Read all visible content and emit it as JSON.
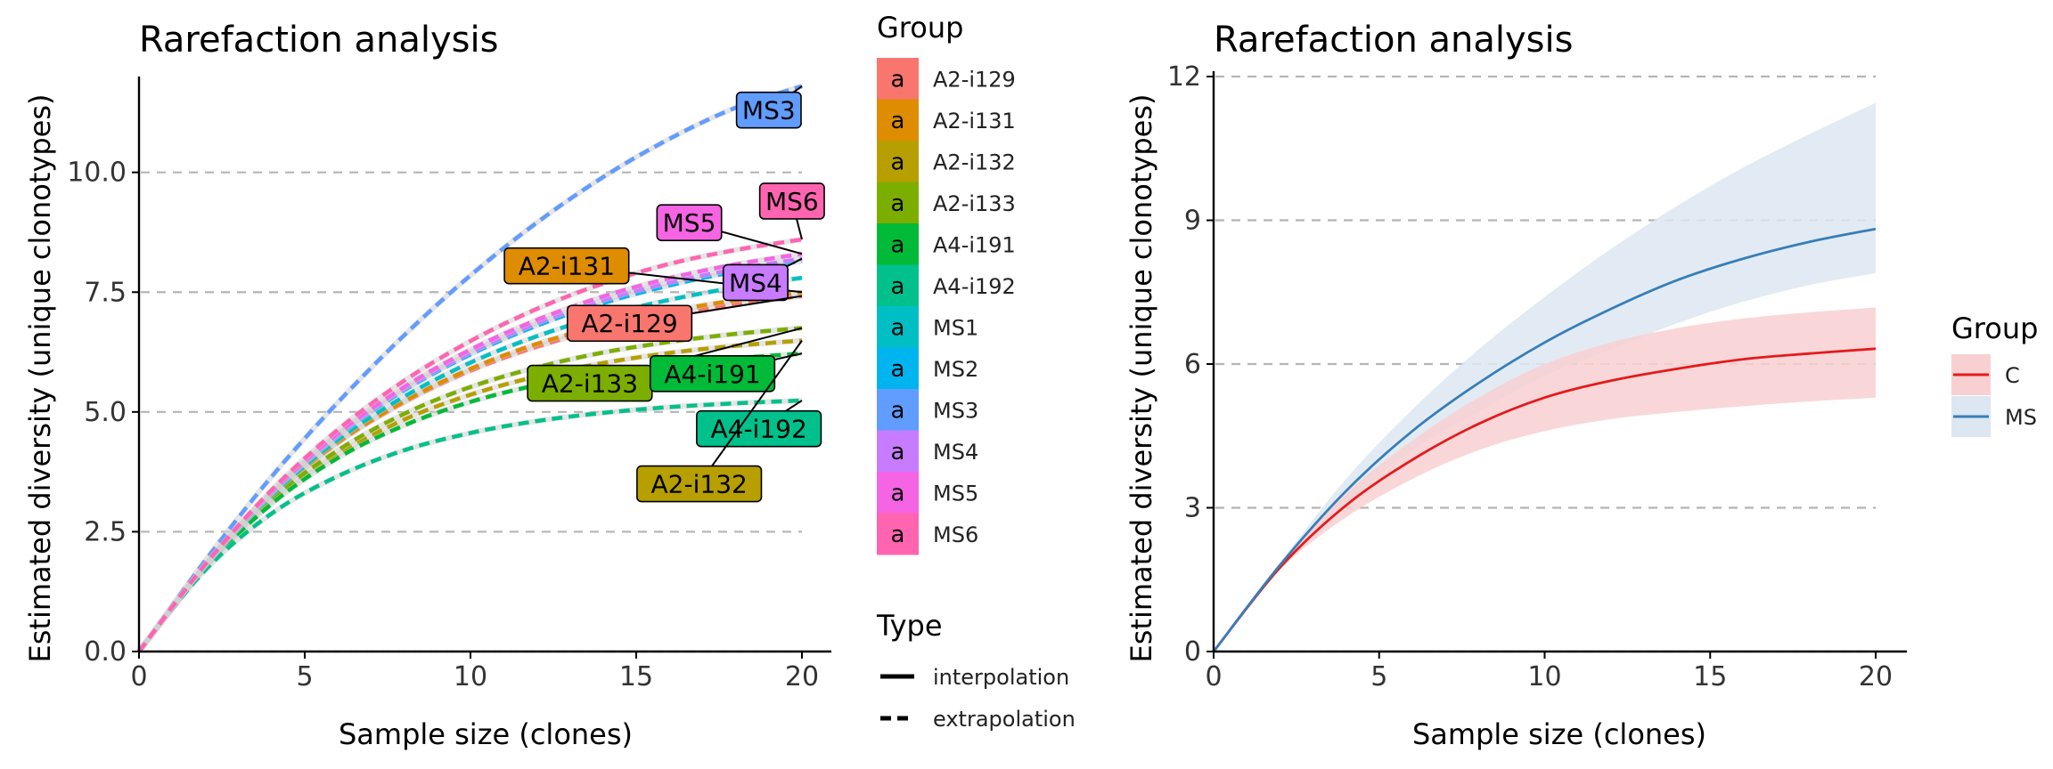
{
  "chart_data": [
    {
      "type": "line",
      "title": "Rarefaction analysis",
      "xlabel": "Sample size (clones)",
      "ylabel": "Estimated diversity (unique clonotypes)",
      "xlim": [
        0,
        20
      ],
      "ylim": [
        0,
        12
      ],
      "xticks": [
        0,
        5,
        10,
        15,
        20
      ],
      "yticks": [
        0.0,
        2.5,
        5.0,
        7.5,
        10.0
      ],
      "ytick_labels": [
        "0.0",
        "2.5",
        "5.0",
        "7.5",
        "10.0"
      ],
      "grid": "horizontal dashed",
      "legend_group_title": "Group",
      "legend_type_title": "Type",
      "legend_key_letter": "a",
      "line_types": [
        {
          "name": "interpolation",
          "style": "solid"
        },
        {
          "name": "extrapolation",
          "style": "dashed"
        }
      ],
      "series": [
        {
          "name": "A2-i129",
          "color": "#F8766D",
          "x": [
            0,
            2,
            4,
            6,
            8,
            10,
            12,
            14,
            16,
            18,
            20
          ],
          "y": [
            0,
            1.78,
            3.23,
            4.35,
            5.2,
            5.86,
            6.36,
            6.74,
            7.02,
            7.25,
            7.42
          ]
        },
        {
          "name": "A2-i131",
          "color": "#DE8C00",
          "x": [
            0,
            2,
            4,
            6,
            8,
            10,
            12,
            14,
            16,
            18,
            20
          ],
          "y": [
            0,
            1.79,
            3.24,
            4.37,
            5.22,
            5.9,
            6.42,
            6.8,
            7.1,
            7.33,
            7.5
          ]
        },
        {
          "name": "A2-i132",
          "color": "#B79F00",
          "x": [
            0,
            2,
            4,
            6,
            8,
            10,
            12,
            14,
            16,
            18,
            20
          ],
          "y": [
            0,
            1.76,
            3.12,
            4.11,
            4.84,
            5.36,
            5.74,
            6.02,
            6.23,
            6.38,
            6.49
          ]
        },
        {
          "name": "A2-i133",
          "color": "#7CAE00",
          "x": [
            0,
            2,
            4,
            6,
            8,
            10,
            12,
            14,
            16,
            18,
            20
          ],
          "y": [
            0,
            1.77,
            3.17,
            4.2,
            4.96,
            5.52,
            5.93,
            6.24,
            6.46,
            6.63,
            6.75
          ]
        },
        {
          "name": "A4-i191",
          "color": "#00BA38",
          "x": [
            0,
            2,
            4,
            6,
            8,
            10,
            12,
            14,
            16,
            18,
            20
          ],
          "y": [
            0,
            1.75,
            3.08,
            4.04,
            4.72,
            5.21,
            5.56,
            5.81,
            5.99,
            6.12,
            6.22
          ]
        },
        {
          "name": "A4-i192",
          "color": "#00C08B",
          "x": [
            0,
            2,
            4,
            6,
            8,
            10,
            12,
            14,
            16,
            18,
            20
          ],
          "y": [
            0,
            1.7,
            2.88,
            3.66,
            4.2,
            4.56,
            4.81,
            4.98,
            5.1,
            5.18,
            5.24
          ]
        },
        {
          "name": "MS1",
          "color": "#00BFC4",
          "x": [
            0,
            2,
            4,
            6,
            8,
            10,
            12,
            14,
            16,
            18,
            20
          ],
          "y": [
            0,
            1.79,
            3.26,
            4.42,
            5.32,
            6.03,
            6.58,
            7.01,
            7.34,
            7.6,
            7.8
          ]
        },
        {
          "name": "MS2",
          "color": "#00B4F0",
          "x": [
            0,
            2,
            4,
            6,
            8,
            10,
            12,
            14,
            16,
            18,
            20
          ],
          "y": [
            0,
            1.8,
            3.3,
            4.5,
            5.45,
            6.2,
            6.8,
            7.27,
            7.64,
            7.93,
            8.15
          ]
        },
        {
          "name": "MS3",
          "color": "#619CFF",
          "x": [
            0,
            2,
            4,
            6,
            8,
            10,
            12,
            14,
            16,
            18,
            20
          ],
          "y": [
            0,
            1.9,
            3.65,
            5.2,
            6.6,
            7.85,
            8.95,
            9.9,
            10.7,
            11.35,
            11.8
          ]
        },
        {
          "name": "MS4",
          "color": "#C77CFF",
          "x": [
            0,
            2,
            4,
            6,
            8,
            10,
            12,
            14,
            16,
            18,
            20
          ],
          "y": [
            0,
            1.8,
            3.31,
            4.52,
            5.48,
            6.24,
            6.85,
            7.33,
            7.7,
            7.98,
            8.2
          ]
        },
        {
          "name": "MS5",
          "color": "#F564E3",
          "x": [
            0,
            2,
            4,
            6,
            8,
            10,
            12,
            14,
            16,
            18,
            20
          ],
          "y": [
            0,
            1.81,
            3.33,
            4.55,
            5.52,
            6.3,
            6.92,
            7.41,
            7.79,
            8.08,
            8.3
          ]
        },
        {
          "name": "MS6",
          "color": "#FF64B0",
          "x": [
            0,
            2,
            4,
            6,
            8,
            10,
            12,
            14,
            16,
            18,
            20
          ],
          "y": [
            0,
            1.82,
            3.37,
            4.63,
            5.65,
            6.48,
            7.15,
            7.68,
            8.09,
            8.38,
            8.6
          ]
        }
      ],
      "point_labels": [
        {
          "text": "MS3",
          "series": "MS3",
          "label_x": 19.0,
          "label_y": 11.3
        },
        {
          "text": "MS6",
          "series": "MS6",
          "label_x": 19.7,
          "label_y": 9.4
        },
        {
          "text": "MS5",
          "series": "MS5",
          "label_x": 16.6,
          "label_y": 8.95
        },
        {
          "text": "A2-i131",
          "series": "A2-i131",
          "label_x": 12.9,
          "label_y": 8.05
        },
        {
          "text": "MS4",
          "series": "MS4",
          "label_x": 18.6,
          "label_y": 7.7
        },
        {
          "text": "A2-i129",
          "series": "A2-i129",
          "label_x": 14.8,
          "label_y": 6.85
        },
        {
          "text": "A2-i133",
          "series": "A2-i133",
          "label_x": 13.6,
          "label_y": 5.6
        },
        {
          "text": "A4-i191",
          "series": "A4-i191",
          "label_x": 17.3,
          "label_y": 5.8
        },
        {
          "text": "A4-i192",
          "series": "A4-i192",
          "label_x": 18.7,
          "label_y": 4.65
        },
        {
          "text": "A2-i132",
          "series": "A2-i132",
          "label_x": 16.9,
          "label_y": 3.5
        }
      ]
    },
    {
      "type": "line",
      "title": "Rarefaction analysis",
      "xlabel": "Sample size (clones)",
      "ylabel": "Estimated diversity (unique clonotypes)",
      "xlim": [
        0,
        20
      ],
      "ylim": [
        0,
        12
      ],
      "xticks": [
        0,
        5,
        10,
        15,
        20
      ],
      "yticks": [
        0,
        3,
        6,
        9,
        12
      ],
      "ytick_labels": [
        "0",
        "3",
        "6",
        "9",
        "12"
      ],
      "grid": "horizontal dashed",
      "legend_title": "Group",
      "series": [
        {
          "name": "C",
          "color": "#E41A1C",
          "band_color": "#F8D0D1",
          "x": [
            0,
            2,
            4,
            6,
            8,
            10,
            12,
            14,
            16,
            18,
            20
          ],
          "y": [
            0,
            1.75,
            3.05,
            4.0,
            4.75,
            5.3,
            5.65,
            5.9,
            6.1,
            6.22,
            6.32
          ],
          "lower": [
            0,
            1.7,
            2.8,
            3.6,
            4.2,
            4.6,
            4.85,
            5.0,
            5.12,
            5.22,
            5.3
          ],
          "upper": [
            0,
            1.8,
            3.3,
            4.4,
            5.3,
            6.0,
            6.45,
            6.75,
            6.95,
            7.08,
            7.18
          ]
        },
        {
          "name": "MS",
          "color": "#377EB8",
          "band_color": "#DDE7F1",
          "x": [
            0,
            2,
            4,
            6,
            8,
            10,
            12,
            14,
            16,
            18,
            20
          ],
          "y": [
            0,
            1.8,
            3.35,
            4.6,
            5.6,
            6.45,
            7.15,
            7.75,
            8.2,
            8.55,
            8.82
          ],
          "lower": [
            0,
            1.75,
            3.1,
            4.2,
            5.0,
            5.75,
            6.3,
            6.85,
            7.3,
            7.65,
            7.9
          ],
          "upper": [
            0,
            1.85,
            3.6,
            5.05,
            6.3,
            7.4,
            8.4,
            9.3,
            10.1,
            10.8,
            11.45
          ]
        }
      ]
    }
  ]
}
